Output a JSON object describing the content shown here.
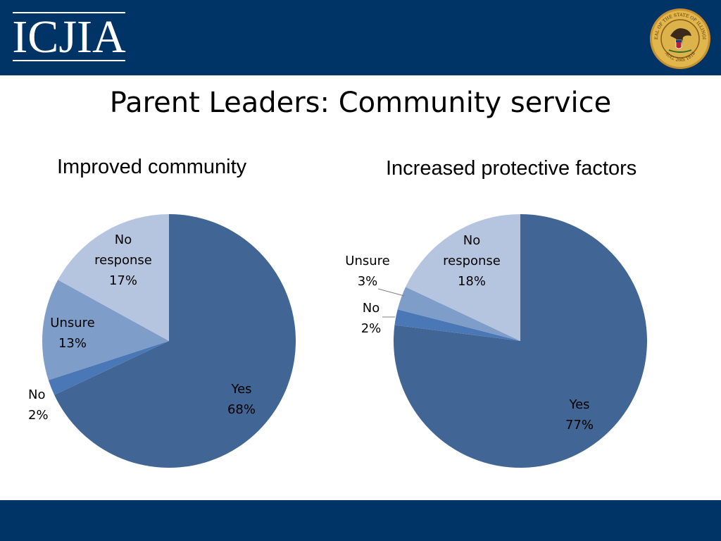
{
  "header": {
    "logo_text": "ICJIA",
    "seal_name": "seal-of-the-state-of-illinois",
    "seal_text_top": "SEAL OF THE STATE OF ILLINOIS",
    "seal_text_bottom": "AUG. 26th 1818"
  },
  "slide": {
    "title": "Parent Leaders: Community service"
  },
  "colors": {
    "brand_navy": "#003366",
    "yes": "#416594",
    "no": "#4a78b7",
    "unsure": "#7e9dc9",
    "no_response": "#b6c5df"
  },
  "chart_data": [
    {
      "type": "pie",
      "title": "Improved community",
      "slices": [
        {
          "label_lines": [
            "Yes",
            "68%"
          ],
          "value": 68,
          "color": "#416594"
        },
        {
          "label_lines": [
            "No",
            "2%"
          ],
          "value": 2,
          "color": "#4a78b7"
        },
        {
          "label_lines": [
            "Unsure",
            "13%"
          ],
          "value": 13,
          "color": "#7e9dc9"
        },
        {
          "label_lines": [
            "No",
            "response",
            "17%"
          ],
          "value": 17,
          "color": "#b6c5df"
        }
      ]
    },
    {
      "type": "pie",
      "title": "Increased protective factors",
      "slices": [
        {
          "label_lines": [
            "Yes",
            "77%"
          ],
          "value": 77,
          "color": "#416594"
        },
        {
          "label_lines": [
            "No",
            "2%"
          ],
          "value": 2,
          "color": "#4a78b7"
        },
        {
          "label_lines": [
            "Unsure",
            "3%"
          ],
          "value": 3,
          "color": "#7e9dc9"
        },
        {
          "label_lines": [
            "No",
            "response",
            "18%"
          ],
          "value": 18,
          "color": "#b6c5df"
        }
      ]
    }
  ]
}
